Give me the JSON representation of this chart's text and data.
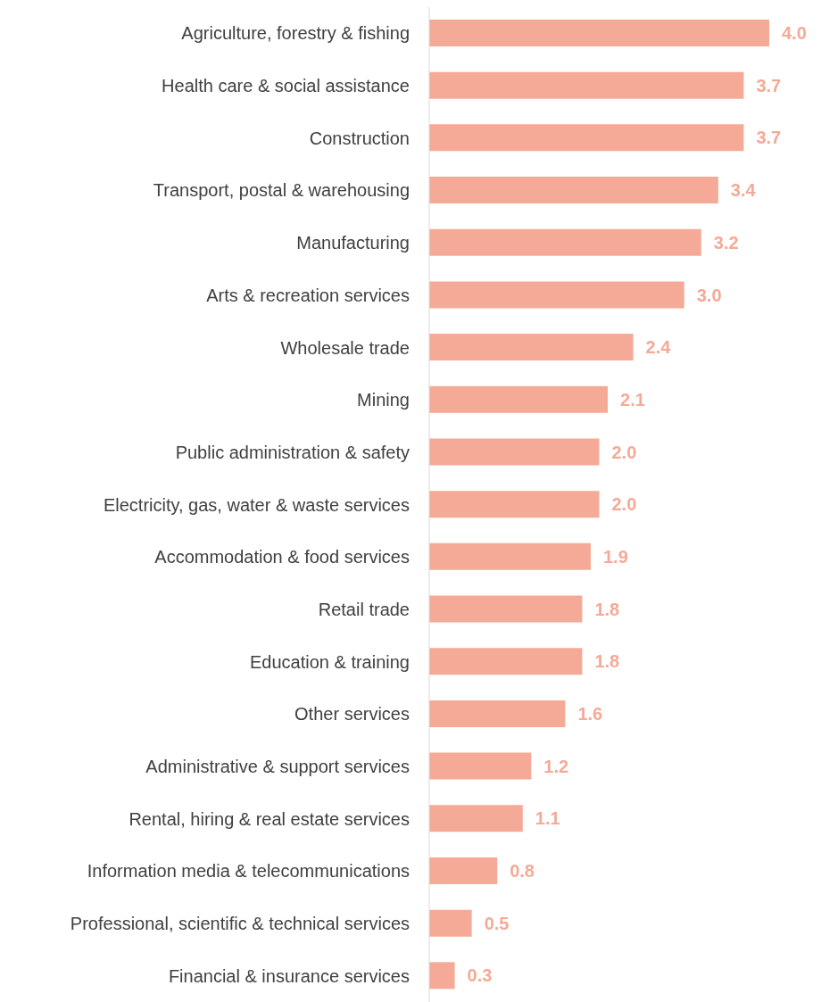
{
  "chart_data": {
    "type": "bar",
    "orientation": "horizontal",
    "categories": [
      "Agriculture, forestry & fishing",
      "Health care & social assistance",
      "Construction",
      "Transport, postal & warehousing",
      "Manufacturing",
      "Arts & recreation services",
      "Wholesale trade",
      "Mining",
      "Public administration & safety",
      "Electricity, gas, water & waste services",
      "Accommodation & food services",
      "Retail trade",
      "Education & training",
      "Other services",
      "Administrative & support services",
      "Rental, hiring & real estate services",
      "Information media & telecommunications",
      "Professional, scientific & technical services",
      "Financial & insurance services"
    ],
    "series": [
      {
        "color": "#f4aa96",
        "values": [
          4.0,
          3.7,
          3.7,
          3.4,
          3.2,
          3.0,
          2.4,
          2.1,
          2.0,
          2.0,
          1.9,
          1.8,
          1.8,
          1.6,
          1.2,
          1.1,
          0.8,
          0.5,
          0.3
        ],
        "value_labels": [
          "4.0",
          "3.7",
          "3.7",
          "3.4",
          "3.2",
          "3.0",
          "2.4",
          "2.1",
          "2.0",
          "2.0",
          "1.9",
          "1.8",
          "1.8",
          "1.6",
          "1.2",
          "1.1",
          "0.8",
          "0.5",
          "0.3"
        ]
      }
    ]
  }
}
